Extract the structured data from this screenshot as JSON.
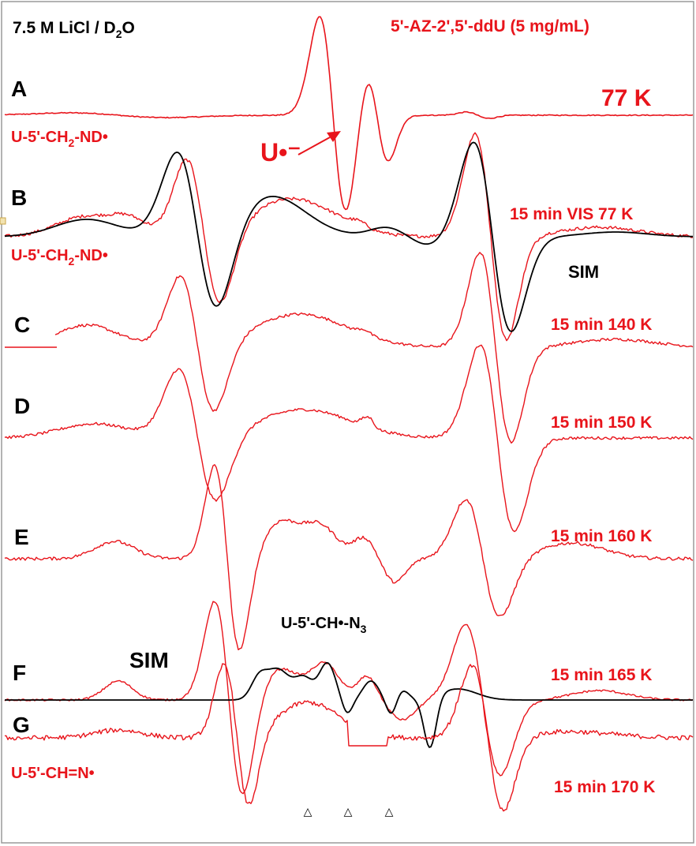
{
  "chart_data": {
    "type": "line",
    "title_left": "7.5 M LiCl / D",
    "title_left_sub": "2",
    "title_left_end": "O",
    "title_right": "5'-AZ-2',5'-ddU (5 mg/mL)",
    "xlabel": "",
    "ylabel": "",
    "grid": false,
    "colors": {
      "spectrum": "#e8141b",
      "simulation": "#000000",
      "frame": "#9a9a9a"
    },
    "series": [
      {
        "letter": "A",
        "condition": "77 K"
      },
      {
        "letter": "B",
        "condition": "15 min VIS 77 K"
      },
      {
        "letter": "C",
        "condition": "15 min 140 K"
      },
      {
        "letter": "D",
        "condition": "15 min 150 K"
      },
      {
        "letter": "E",
        "condition": "15 min 160 K"
      },
      {
        "letter": "F",
        "condition": "15 min 165 K"
      },
      {
        "letter": "G",
        "condition": "15 min 170 K"
      }
    ],
    "annotations": {
      "u_anion": "U•⁻",
      "radical_a": "U-5'-CH",
      "radical_a_sub": "2",
      "radical_a_end": "-ND•",
      "radical_b": "U-5'-CH",
      "radical_b_sub": "2",
      "radical_b_end": "-ND•",
      "radical_c": "U-5'-CH•-N",
      "radical_c_sub": "3",
      "radical_d": "U-5'-CH=N•",
      "sim_b": "SIM",
      "sim_f": "SIM",
      "marker_glyph": "△"
    }
  }
}
